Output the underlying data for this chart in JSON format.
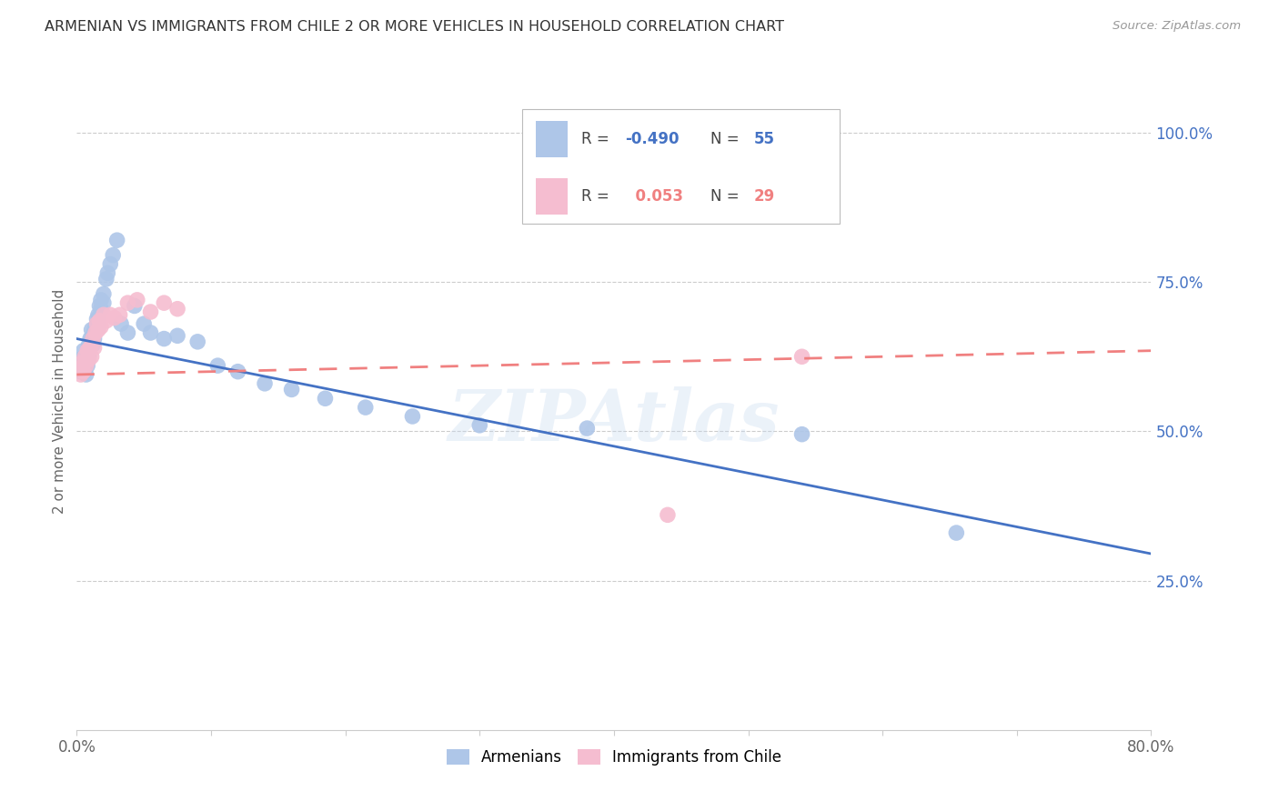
{
  "title": "ARMENIAN VS IMMIGRANTS FROM CHILE 2 OR MORE VEHICLES IN HOUSEHOLD CORRELATION CHART",
  "source": "Source: ZipAtlas.com",
  "ylabel": "2 or more Vehicles in Household",
  "x_min": 0.0,
  "x_max": 0.8,
  "y_min": 0.0,
  "y_max": 1.1,
  "y_ticks_right": [
    0.25,
    0.5,
    0.75,
    1.0
  ],
  "y_tick_labels_right": [
    "25.0%",
    "50.0%",
    "75.0%",
    "100.0%"
  ],
  "armenian_R": -0.49,
  "armenian_N": 55,
  "chile_R": 0.053,
  "chile_N": 29,
  "armenian_color": "#aec6e8",
  "chile_color": "#f5bdd0",
  "armenian_line_color": "#4472c4",
  "chile_line_color": "#f08080",
  "watermark": "ZIPAtlas",
  "armenian_line_x0": 0.0,
  "armenian_line_y0": 0.655,
  "armenian_line_x1": 0.8,
  "armenian_line_y1": 0.295,
  "chile_line_x0": 0.0,
  "chile_line_y0": 0.595,
  "chile_line_x1": 0.8,
  "chile_line_y1": 0.635,
  "armenian_scatter_x": [
    0.002,
    0.003,
    0.004,
    0.005,
    0.005,
    0.006,
    0.006,
    0.007,
    0.007,
    0.008,
    0.008,
    0.009,
    0.009,
    0.01,
    0.01,
    0.011,
    0.011,
    0.012,
    0.012,
    0.013,
    0.013,
    0.014,
    0.015,
    0.015,
    0.016,
    0.016,
    0.017,
    0.018,
    0.018,
    0.02,
    0.02,
    0.022,
    0.023,
    0.025,
    0.027,
    0.03,
    0.033,
    0.038,
    0.043,
    0.05,
    0.055,
    0.065,
    0.075,
    0.09,
    0.105,
    0.12,
    0.14,
    0.16,
    0.185,
    0.215,
    0.25,
    0.3,
    0.38,
    0.54,
    0.655
  ],
  "armenian_scatter_y": [
    0.62,
    0.6,
    0.615,
    0.635,
    0.605,
    0.625,
    0.6,
    0.615,
    0.595,
    0.63,
    0.61,
    0.645,
    0.625,
    0.655,
    0.64,
    0.67,
    0.652,
    0.66,
    0.645,
    0.668,
    0.655,
    0.675,
    0.688,
    0.672,
    0.695,
    0.68,
    0.71,
    0.72,
    0.705,
    0.73,
    0.715,
    0.755,
    0.765,
    0.78,
    0.795,
    0.82,
    0.68,
    0.665,
    0.71,
    0.68,
    0.665,
    0.655,
    0.66,
    0.65,
    0.61,
    0.6,
    0.58,
    0.57,
    0.555,
    0.54,
    0.525,
    0.51,
    0.505,
    0.495,
    0.33
  ],
  "chile_scatter_x": [
    0.002,
    0.003,
    0.004,
    0.005,
    0.006,
    0.007,
    0.008,
    0.009,
    0.01,
    0.011,
    0.012,
    0.013,
    0.014,
    0.015,
    0.016,
    0.017,
    0.018,
    0.02,
    0.022,
    0.025,
    0.028,
    0.032,
    0.038,
    0.045,
    0.055,
    0.065,
    0.075,
    0.44,
    0.54
  ],
  "chile_scatter_y": [
    0.605,
    0.595,
    0.615,
    0.6,
    0.625,
    0.61,
    0.635,
    0.62,
    0.64,
    0.625,
    0.655,
    0.64,
    0.665,
    0.68,
    0.67,
    0.685,
    0.675,
    0.695,
    0.685,
    0.695,
    0.69,
    0.695,
    0.715,
    0.72,
    0.7,
    0.715,
    0.705,
    0.36,
    0.625
  ]
}
